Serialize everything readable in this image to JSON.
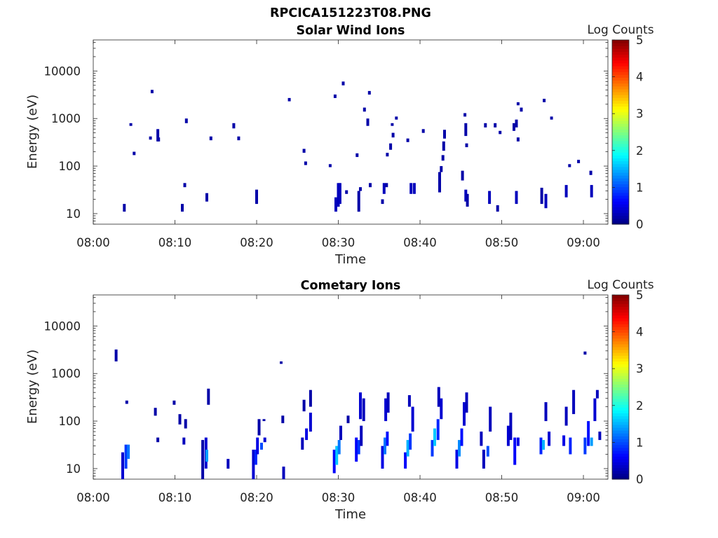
{
  "figure": {
    "title": "RPCICA151223T08.PNG"
  },
  "colormap": {
    "colors": [
      "#00007f",
      "#0000ff",
      "#007fff",
      "#00ffff",
      "#7fff7f",
      "#ffff00",
      "#ff7f00",
      "#ff0000",
      "#7f0000"
    ]
  },
  "chart_data": [
    {
      "type": "heatmap",
      "title": "Solar Wind Ions",
      "xlabel": "Time",
      "ylabel": "Energy (eV)",
      "colorbar_label": "Log Counts",
      "xlim_minutes": [
        0,
        63
      ],
      "xticks": [
        {
          "minutes": 0,
          "label": "08:00"
        },
        {
          "minutes": 10,
          "label": "08:10"
        },
        {
          "minutes": 20,
          "label": "08:20"
        },
        {
          "minutes": 30,
          "label": "08:30"
        },
        {
          "minutes": 40,
          "label": "08:40"
        },
        {
          "minutes": 50,
          "label": "08:50"
        },
        {
          "minutes": 60,
          "label": "09:00"
        }
      ],
      "yscale": "log",
      "ylim": [
        6,
        45000
      ],
      "yticks": [
        {
          "value": 10,
          "label": "10"
        },
        {
          "value": 100,
          "label": "100"
        },
        {
          "value": 1000,
          "label": "1000"
        },
        {
          "value": 10000,
          "label": "10000"
        }
      ],
      "clim": [
        0,
        5
      ],
      "cticks": [
        "0",
        "1",
        "2",
        "3",
        "4",
        "5"
      ],
      "cells": [
        [
          3.8,
          11,
          16,
          0.2
        ],
        [
          4.6,
          700,
          800,
          0.2
        ],
        [
          5.0,
          170,
          200,
          0.2
        ],
        [
          7.2,
          3400,
          4000,
          0.2
        ],
        [
          7.0,
          360,
          420,
          0.2
        ],
        [
          7.9,
          330,
          600,
          0.2
        ],
        [
          8.0,
          330,
          400,
          0.2
        ],
        [
          11.2,
          36,
          44,
          0.2
        ],
        [
          11.4,
          800,
          1000,
          0.2
        ],
        [
          10.9,
          11,
          16,
          0.2
        ],
        [
          13.9,
          18,
          27,
          0.2
        ],
        [
          14.4,
          350,
          420,
          0.2
        ],
        [
          17.2,
          620,
          800,
          0.2
        ],
        [
          17.8,
          350,
          420,
          0.2
        ],
        [
          20.0,
          16,
          32,
          0.2
        ],
        [
          24.0,
          2300,
          2700,
          0.2
        ],
        [
          25.8,
          190,
          230,
          0.2
        ],
        [
          26.0,
          105,
          125,
          0.2
        ],
        [
          29.0,
          95,
          110,
          0.2
        ],
        [
          29.6,
          2700,
          3200,
          0.2
        ],
        [
          29.7,
          11,
          22,
          0.3
        ],
        [
          30.0,
          14,
          44,
          0.3
        ],
        [
          30.2,
          16,
          44,
          0.3
        ],
        [
          30.6,
          5000,
          6000,
          0.2
        ],
        [
          31.0,
          26,
          31,
          0.2
        ],
        [
          32.3,
          155,
          185,
          0.2
        ],
        [
          32.5,
          11,
          30,
          0.2
        ],
        [
          32.7,
          30,
          36,
          0.2
        ],
        [
          33.2,
          1400,
          1700,
          0.2
        ],
        [
          33.6,
          700,
          1000,
          0.2
        ],
        [
          33.8,
          3200,
          3800,
          0.2
        ],
        [
          33.9,
          36,
          44,
          0.2
        ],
        [
          35.4,
          16,
          20,
          0.2
        ],
        [
          35.6,
          26,
          44,
          0.3
        ],
        [
          35.9,
          36,
          44,
          0.2
        ],
        [
          36.0,
          160,
          190,
          0.2
        ],
        [
          36.4,
          220,
          300,
          0.2
        ],
        [
          36.6,
          700,
          800,
          0.2
        ],
        [
          36.7,
          400,
          500,
          0.2
        ],
        [
          37.1,
          950,
          1100,
          0.2
        ],
        [
          38.5,
          320,
          380,
          0.2
        ],
        [
          38.9,
          26,
          44,
          0.3
        ],
        [
          39.3,
          26,
          44,
          0.3
        ],
        [
          40.4,
          500,
          600,
          0.2
        ],
        [
          42.4,
          28,
          75,
          0.2
        ],
        [
          42.6,
          75,
          100,
          0.2
        ],
        [
          42.8,
          130,
          170,
          0.2
        ],
        [
          42.9,
          210,
          330,
          0.2
        ],
        [
          43.0,
          380,
          580,
          0.2
        ],
        [
          45.2,
          50,
          80,
          0.2
        ],
        [
          45.5,
          1100,
          1300,
          0.2
        ],
        [
          45.6,
          18,
          32,
          0.3
        ],
        [
          45.7,
          250,
          300,
          0.2
        ],
        [
          45.6,
          430,
          800,
          0.2
        ],
        [
          45.8,
          14,
          26,
          0.2
        ],
        [
          48.0,
          650,
          800,
          0.2
        ],
        [
          48.5,
          16,
          30,
          0.3
        ],
        [
          49.2,
          650,
          800,
          0.2
        ],
        [
          49.5,
          11,
          15,
          0.2
        ],
        [
          49.8,
          470,
          550,
          0.2
        ],
        [
          51.5,
          550,
          800,
          0.2
        ],
        [
          51.8,
          16,
          30,
          0.3
        ],
        [
          51.8,
          650,
          950,
          0.2
        ],
        [
          52.0,
          1900,
          2200,
          0.2
        ],
        [
          52.4,
          1400,
          1700,
          0.2
        ],
        [
          52.0,
          330,
          400,
          0.2
        ],
        [
          54.9,
          16,
          35,
          0.2
        ],
        [
          55.2,
          2200,
          2600,
          0.2
        ],
        [
          55.4,
          13,
          26,
          0.3
        ],
        [
          56.1,
          950,
          1100,
          0.2
        ],
        [
          57.9,
          22,
          40,
          0.3
        ],
        [
          58.3,
          95,
          110,
          0.2
        ],
        [
          59.4,
          115,
          135,
          0.2
        ],
        [
          60.9,
          65,
          80,
          0.2
        ],
        [
          61.0,
          22,
          40,
          0.3
        ]
      ]
    },
    {
      "type": "heatmap",
      "title": "Cometary Ions",
      "xlabel": "Time",
      "ylabel": "Energy (eV)",
      "colorbar_label": "Log Counts",
      "xlim_minutes": [
        0,
        63
      ],
      "xticks": [
        {
          "minutes": 0,
          "label": "08:00"
        },
        {
          "minutes": 10,
          "label": "08:10"
        },
        {
          "minutes": 20,
          "label": "08:20"
        },
        {
          "minutes": 30,
          "label": "08:30"
        },
        {
          "minutes": 40,
          "label": "08:40"
        },
        {
          "minutes": 50,
          "label": "08:50"
        },
        {
          "minutes": 60,
          "label": "09:00"
        }
      ],
      "yscale": "log",
      "ylim": [
        6,
        45000
      ],
      "yticks": [
        {
          "value": 10,
          "label": "10"
        },
        {
          "value": 100,
          "label": "100"
        },
        {
          "value": 1000,
          "label": "1000"
        },
        {
          "value": 10000,
          "label": "10000"
        }
      ],
      "clim": [
        0,
        5
      ],
      "cticks": [
        "0",
        "1",
        "2",
        "3",
        "4",
        "5"
      ],
      "cells": [
        [
          2.8,
          1800,
          3200,
          0.2
        ],
        [
          3.6,
          6,
          22,
          0.4
        ],
        [
          4.0,
          10,
          32,
          0.9
        ],
        [
          4.3,
          16,
          32,
          1.2
        ],
        [
          4.1,
          230,
          270,
          0.2
        ],
        [
          7.6,
          130,
          190,
          0.2
        ],
        [
          7.9,
          36,
          45,
          0.2
        ],
        [
          9.9,
          220,
          270,
          0.2
        ],
        [
          10.6,
          85,
          140,
          0.2
        ],
        [
          11.1,
          32,
          45,
          0.3
        ],
        [
          11.3,
          70,
          110,
          0.2
        ],
        [
          13.4,
          6,
          40,
          0.2
        ],
        [
          13.8,
          10,
          45,
          0.4
        ],
        [
          13.9,
          14,
          25,
          1.4
        ],
        [
          14.1,
          220,
          480,
          0.2
        ],
        [
          16.5,
          10,
          16,
          0.3
        ],
        [
          19.6,
          6,
          25,
          0.4
        ],
        [
          19.9,
          12,
          25,
          0.8
        ],
        [
          20.1,
          20,
          45,
          0.5
        ],
        [
          20.3,
          50,
          110,
          0.2
        ],
        [
          20.6,
          25,
          35,
          1.0
        ],
        [
          21.0,
          36,
          45,
          0.4
        ],
        [
          23.3,
          6,
          11,
          0.3
        ],
        [
          23.0,
          1600,
          1800,
          0.2
        ],
        [
          20.9,
          100,
          110,
          0.2
        ],
        [
          23.2,
          90,
          130,
          0.2
        ],
        [
          25.6,
          25,
          45,
          0.3
        ],
        [
          25.8,
          160,
          280,
          0.2
        ],
        [
          26.1,
          40,
          70,
          0.5
        ],
        [
          26.6,
          60,
          150,
          0.4
        ],
        [
          26.6,
          200,
          450,
          0.2
        ],
        [
          29.5,
          8,
          25,
          0.6
        ],
        [
          29.8,
          12,
          30,
          1.6
        ],
        [
          30.1,
          20,
          40,
          1.2
        ],
        [
          30.3,
          40,
          80,
          0.3
        ],
        [
          31.2,
          90,
          130,
          0.2
        ],
        [
          32.2,
          14,
          45,
          0.6
        ],
        [
          32.5,
          20,
          40,
          0.9
        ],
        [
          32.8,
          30,
          80,
          0.3
        ],
        [
          32.7,
          110,
          400,
          0.4
        ],
        [
          33.1,
          100,
          300,
          0.3
        ],
        [
          35.4,
          10,
          30,
          0.5
        ],
        [
          35.7,
          20,
          45,
          1.2
        ],
        [
          36.0,
          30,
          60,
          0.7
        ],
        [
          35.8,
          100,
          300,
          0.4
        ],
        [
          36.1,
          150,
          400,
          0.3
        ],
        [
          38.2,
          10,
          22,
          0.6
        ],
        [
          38.5,
          18,
          40,
          1.5
        ],
        [
          38.8,
          25,
          55,
          0.9
        ],
        [
          39.1,
          60,
          200,
          0.4
        ],
        [
          38.7,
          200,
          350,
          0.3
        ],
        [
          41.5,
          18,
          40,
          0.9
        ],
        [
          41.8,
          30,
          70,
          1.6
        ],
        [
          42.2,
          40,
          110,
          0.8
        ],
        [
          42.6,
          110,
          300,
          0.4
        ],
        [
          42.3,
          200,
          520,
          0.3
        ],
        [
          44.5,
          10,
          25,
          0.5
        ],
        [
          44.8,
          18,
          40,
          1.3
        ],
        [
          45.1,
          30,
          70,
          0.7
        ],
        [
          45.4,
          80,
          250,
          0.4
        ],
        [
          45.7,
          150,
          400,
          0.3
        ],
        [
          47.5,
          30,
          60,
          0.3
        ],
        [
          47.8,
          10,
          25,
          0.3
        ],
        [
          48.3,
          18,
          30,
          1.0
        ],
        [
          48.6,
          60,
          200,
          0.3
        ],
        [
          50.8,
          30,
          80,
          0.4
        ],
        [
          51.1,
          40,
          150,
          0.3
        ],
        [
          51.6,
          12,
          45,
          0.6
        ],
        [
          52.0,
          30,
          45,
          0.5
        ],
        [
          54.8,
          20,
          45,
          0.8
        ],
        [
          55.1,
          25,
          40,
          1.5
        ],
        [
          55.4,
          100,
          250,
          0.3
        ],
        [
          55.8,
          30,
          60,
          0.4
        ],
        [
          57.6,
          30,
          50,
          0.5
        ],
        [
          57.9,
          80,
          200,
          0.3
        ],
        [
          58.4,
          20,
          45,
          0.8
        ],
        [
          58.8,
          140,
          450,
          0.3
        ],
        [
          60.2,
          20,
          45,
          0.9
        ],
        [
          60.6,
          30,
          100,
          0.7
        ],
        [
          61.0,
          30,
          45,
          1.4
        ],
        [
          61.4,
          100,
          300,
          0.4
        ],
        [
          61.7,
          300,
          450,
          0.3
        ],
        [
          60.2,
          2500,
          2900,
          0.2
        ],
        [
          62.0,
          40,
          60,
          0.3
        ]
      ]
    }
  ]
}
